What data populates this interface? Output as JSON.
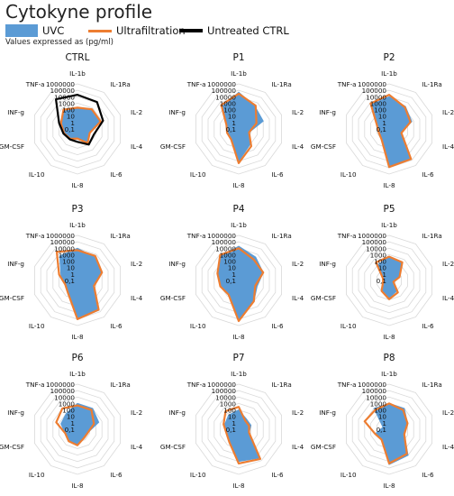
{
  "figure_title": "Cytokyne profile",
  "units_note": "Values expressed as (pg/ml)",
  "colors": {
    "uvc": "#5b9bd5",
    "ultrafiltration": "#ed7d31",
    "untreated": "#000000",
    "grid": "#d9d9d9"
  },
  "chart_data": [
    {
      "type": "radar",
      "title": "CTRL",
      "axes": [
        "IL-1b",
        "IL-1Ra",
        "IL-2",
        "IL-4",
        "IL-6",
        "IL-8",
        "IL-10",
        "GM-CSF",
        "INF-g",
        "TNF-a"
      ],
      "scale": "log",
      "ticks": [
        "0,1",
        "1",
        "10",
        "100",
        "1000",
        "10000",
        "100000",
        "1000000"
      ],
      "series": [
        {
          "name": "UVC",
          "values": [
            200,
            600,
            600,
            10,
            50,
            3,
            8,
            15,
            50,
            500
          ]
        },
        {
          "name": "Ultrafiltration",
          "values": [
            200,
            600,
            600,
            10,
            50,
            3,
            8,
            15,
            50,
            500
          ]
        },
        {
          "name": "Untreated CTRL",
          "values": [
            20000,
            15000,
            1500,
            50,
            100,
            10,
            10,
            20,
            100,
            50000
          ]
        }
      ]
    },
    {
      "type": "radar",
      "title": "P1",
      "axes": [
        "IL-1b",
        "IL-1Ra",
        "IL-2",
        "IL-4",
        "IL-6",
        "IL-8",
        "IL-10",
        "GM-CSF",
        "INF-g",
        "TNF-a"
      ],
      "scale": "log",
      "ticks": [
        "0,1",
        "1",
        "10",
        "100",
        "1000",
        "10000",
        "100000",
        "1000000"
      ],
      "series": [
        {
          "name": "UVC",
          "values": [
            50000,
            2000,
            1000,
            5,
            100,
            10000,
            10,
            5,
            10,
            2000
          ]
        },
        {
          "name": "Ultrafiltration",
          "values": [
            30000,
            3000,
            80,
            5,
            200,
            20000,
            10,
            8,
            10,
            4000
          ]
        }
      ]
    },
    {
      "type": "radar",
      "title": "P2",
      "axes": [
        "IL-1b",
        "IL-1Ra",
        "IL-2",
        "IL-4",
        "IL-6",
        "IL-8",
        "IL-10",
        "GM-CSF",
        "INF-g",
        "TNF-a"
      ],
      "scale": "log",
      "ticks": [
        "0,1",
        "1",
        "10",
        "100",
        "1000",
        "10000",
        "100000",
        "1000000"
      ],
      "series": [
        {
          "name": "UVC",
          "values": [
            10000,
            2000,
            500,
            10,
            50000,
            50000,
            10,
            5,
            10,
            5000
          ]
        },
        {
          "name": "Ultrafiltration",
          "values": [
            20000,
            1500,
            300,
            10,
            60000,
            80000,
            10,
            5,
            10,
            8000
          ]
        }
      ]
    },
    {
      "type": "radar",
      "title": "P3",
      "axes": [
        "IL-1b",
        "IL-1Ra",
        "IL-2",
        "IL-4",
        "IL-6",
        "IL-8",
        "IL-10",
        "GM-CSF",
        "INF-g",
        "TNF-a"
      ],
      "scale": "log",
      "ticks": [
        "0,1",
        "1",
        "10",
        "100",
        "1000",
        "10000",
        "100000",
        "1000000"
      ],
      "series": [
        {
          "name": "UVC",
          "values": [
            10000,
            3000,
            1000,
            50,
            50000,
            100000,
            20,
            10,
            50,
            5000
          ]
        },
        {
          "name": "Ultrafiltration",
          "values": [
            5000,
            5000,
            1000,
            50,
            40000,
            100000,
            30,
            10,
            100,
            30000
          ]
        }
      ]
    },
    {
      "type": "radar",
      "title": "P4",
      "axes": [
        "IL-1b",
        "IL-1Ra",
        "IL-2",
        "IL-4",
        "IL-6",
        "IL-8",
        "IL-10",
        "GM-CSF",
        "INF-g",
        "TNF-a"
      ],
      "scale": "log",
      "ticks": [
        "0,1",
        "1",
        "10",
        "100",
        "1000",
        "10000",
        "100000",
        "1000000"
      ],
      "series": [
        {
          "name": "UVC",
          "values": [
            20000,
            3000,
            1000,
            100,
            1000,
            100000,
            50,
            100,
            300,
            5000
          ]
        },
        {
          "name": "Ultrafiltration",
          "values": [
            10000,
            1000,
            1000,
            50,
            1000,
            200000,
            50,
            100,
            300,
            8000
          ]
        }
      ]
    },
    {
      "type": "radar",
      "title": "P5",
      "axes": [
        "IL-1b",
        "IL-1Ra",
        "IL-2",
        "IL-4",
        "IL-6",
        "IL-8",
        "IL-10",
        "GM-CSF",
        "INF-g",
        "TNF-a"
      ],
      "scale": "log",
      "ticks": [
        "0,1",
        "1",
        "10",
        "100",
        "1000",
        "10000",
        "100000",
        "1000000"
      ],
      "series": [
        {
          "name": "UVC",
          "values": [
            500,
            200,
            5,
            0.5,
            10,
            50,
            10,
            1,
            1,
            100
          ]
        },
        {
          "name": "Ultrafiltration",
          "values": [
            500,
            300,
            5,
            0.5,
            20,
            80,
            10,
            1,
            1,
            300
          ]
        }
      ]
    },
    {
      "type": "radar",
      "title": "P6",
      "axes": [
        "IL-1b",
        "IL-1Ra",
        "IL-2",
        "IL-4",
        "IL-6",
        "IL-8",
        "IL-10",
        "GM-CSF",
        "INF-g",
        "TNF-a"
      ],
      "scale": "log",
      "ticks": [
        "0,1",
        "1",
        "10",
        "100",
        "1000",
        "10000",
        "100000",
        "1000000"
      ],
      "series": [
        {
          "name": "UVC",
          "values": [
            1000,
            1000,
            300,
            5,
            5,
            30,
            20,
            10,
            50,
            100
          ]
        },
        {
          "name": "Ultrafiltration",
          "values": [
            500,
            500,
            50,
            5,
            5,
            30,
            20,
            10,
            300,
            1000
          ]
        }
      ]
    },
    {
      "type": "radar",
      "title": "P7",
      "axes": [
        "IL-1b",
        "IL-1Ra",
        "IL-2",
        "IL-4",
        "IL-6",
        "IL-8",
        "IL-10",
        "GM-CSF",
        "INF-g",
        "TNF-a"
      ],
      "scale": "log",
      "ticks": [
        "0,1",
        "1",
        "10",
        "100",
        "1000",
        "10000",
        "100000",
        "1000000"
      ],
      "series": [
        {
          "name": "UVC",
          "values": [
            100,
            10,
            10,
            5,
            30000,
            10000,
            30,
            10,
            20,
            50
          ]
        },
        {
          "name": "Ultrafiltration",
          "values": [
            300,
            5,
            5,
            5,
            50000,
            20000,
            30,
            10,
            30,
            300
          ]
        }
      ]
    },
    {
      "type": "radar",
      "title": "P8",
      "axes": [
        "IL-1b",
        "IL-1Ra",
        "IL-2",
        "IL-4",
        "IL-6",
        "IL-8",
        "IL-10",
        "GM-CSF",
        "INF-g",
        "TNF-a"
      ],
      "scale": "log",
      "ticks": [
        "0,1",
        "1",
        "10",
        "100",
        "1000",
        "10000",
        "100000",
        "1000000"
      ],
      "series": [
        {
          "name": "UVC",
          "values": [
            1000,
            1000,
            100,
            30,
            10000,
            30000,
            10,
            20,
            1,
            1000
          ]
        },
        {
          "name": "Ultrafiltration",
          "values": [
            1000,
            500,
            100,
            30,
            5000,
            20000,
            10,
            20,
            1000,
            500
          ]
        }
      ]
    }
  ]
}
